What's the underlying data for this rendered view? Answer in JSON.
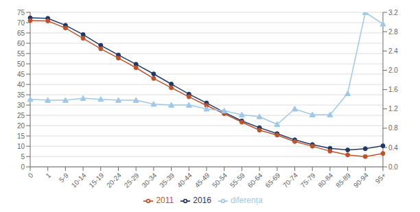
{
  "chart_data": {
    "type": "line",
    "categories": [
      "0",
      "1",
      "5-9",
      "10-14",
      "15-19",
      "20-24",
      "25-29",
      "30-34",
      "35-39",
      "40-44",
      "45-49",
      "50-54",
      "55-59",
      "60-64",
      "65-69",
      "70-74",
      "75-79",
      "80-84",
      "85-89",
      "90-94",
      "95+"
    ],
    "series": [
      {
        "name": "2016",
        "color": "#1F3864",
        "marker": "circle",
        "values": [
          72.3,
          72.1,
          68.7,
          64.2,
          59.0,
          54.3,
          49.8,
          45.1,
          40.2,
          35.3,
          31.0,
          26.5,
          22.3,
          19.0,
          16.1,
          13.1,
          10.8,
          9.0,
          8.2,
          8.8,
          10.2
        ]
      },
      {
        "name": "2011",
        "color": "#C0522B",
        "marker": "circle",
        "values": [
          71.0,
          70.8,
          67.4,
          62.4,
          57.3,
          52.8,
          48.1,
          42.9,
          38.4,
          34.0,
          29.8,
          25.8,
          21.7,
          17.8,
          15.4,
          12.3,
          10.0,
          7.6,
          5.8,
          5.0,
          6.5
        ]
      },
      {
        "name": "diferența",
        "color": "#9DC8E8",
        "marker": "triangle",
        "axis": "y2",
        "values": [
          1.4,
          1.38,
          1.38,
          1.42,
          1.4,
          1.38,
          1.38,
          1.3,
          1.28,
          1.28,
          1.2,
          1.16,
          1.08,
          1.04,
          0.88,
          1.2,
          1.08,
          1.08,
          1.52,
          3.2,
          2.96
        ]
      }
    ],
    "ylim": [
      0,
      75
    ],
    "yticks": [
      0,
      5,
      10,
      15,
      20,
      25,
      30,
      35,
      40,
      45,
      50,
      55,
      60,
      65,
      70,
      75
    ],
    "y2lim": [
      0.0,
      3.2
    ],
    "y2ticks": [
      {
        "value": 0,
        "label": "0.0"
      },
      0.4,
      0.8,
      1.2,
      1.6,
      {
        "value": 2,
        "label": "2.0"
      },
      2.4,
      2.8,
      3.2
    ],
    "grid": true,
    "legend": "bottom"
  }
}
